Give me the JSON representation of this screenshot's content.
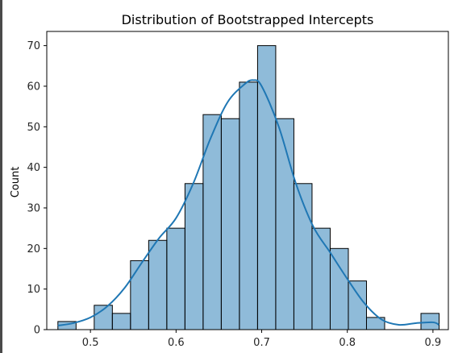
{
  "chart_data": {
    "type": "bar",
    "title": "Distribution of Bootstrapped Intercepts",
    "xlabel": "",
    "ylabel": "Count",
    "xlim": [
      0.449,
      0.918
    ],
    "ylim": [
      0,
      73.5
    ],
    "x_ticks": [
      0.5,
      0.6,
      0.7,
      0.8,
      0.9
    ],
    "y_ticks": [
      0,
      10,
      20,
      30,
      40,
      50,
      60,
      70
    ],
    "bins": [
      {
        "x0": 0.462,
        "x1": 0.4832,
        "count": 2
      },
      {
        "x0": 0.4832,
        "x1": 0.5044,
        "count": 0
      },
      {
        "x0": 0.5044,
        "x1": 0.5256,
        "count": 6
      },
      {
        "x0": 0.5256,
        "x1": 0.5468,
        "count": 4
      },
      {
        "x0": 0.5468,
        "x1": 0.568,
        "count": 17
      },
      {
        "x0": 0.568,
        "x1": 0.5892,
        "count": 22
      },
      {
        "x0": 0.5892,
        "x1": 0.6104,
        "count": 25
      },
      {
        "x0": 0.6104,
        "x1": 0.6316,
        "count": 36
      },
      {
        "x0": 0.6316,
        "x1": 0.6528,
        "count": 53
      },
      {
        "x0": 0.6528,
        "x1": 0.674,
        "count": 52
      },
      {
        "x0": 0.674,
        "x1": 0.6952,
        "count": 61
      },
      {
        "x0": 0.6952,
        "x1": 0.7164,
        "count": 70
      },
      {
        "x0": 0.7164,
        "x1": 0.7376,
        "count": 52
      },
      {
        "x0": 0.7376,
        "x1": 0.7588,
        "count": 36
      },
      {
        "x0": 0.7588,
        "x1": 0.78,
        "count": 25
      },
      {
        "x0": 0.78,
        "x1": 0.8012,
        "count": 20
      },
      {
        "x0": 0.8012,
        "x1": 0.8224,
        "count": 12
      },
      {
        "x0": 0.8224,
        "x1": 0.8436,
        "count": 3
      },
      {
        "x0": 0.8436,
        "x1": 0.8648,
        "count": 0
      },
      {
        "x0": 0.8648,
        "x1": 0.886,
        "count": 0
      },
      {
        "x0": 0.886,
        "x1": 0.9072,
        "count": 4
      }
    ],
    "kde": {
      "x": [
        0.462,
        0.48,
        0.5,
        0.52,
        0.54,
        0.56,
        0.58,
        0.6,
        0.62,
        0.64,
        0.66,
        0.68,
        0.69,
        0.7,
        0.72,
        0.74,
        0.76,
        0.78,
        0.8,
        0.82,
        0.84,
        0.86,
        0.88,
        0.9,
        0.907
      ],
      "y": [
        1,
        1.6,
        3,
        5.8,
        10.3,
        16.5,
        22.5,
        27.5,
        36,
        47,
        56,
        60.5,
        61.5,
        60,
        50,
        36,
        25.5,
        19,
        12.5,
        6.5,
        2.5,
        1.2,
        1.6,
        1.8,
        1.2
      ]
    },
    "bar_color": "#1f77b4",
    "bar_opacity": 0.5,
    "bar_edge_color": "#000000",
    "kde_color": "#1f77b4",
    "grid": false,
    "legend": "none"
  }
}
